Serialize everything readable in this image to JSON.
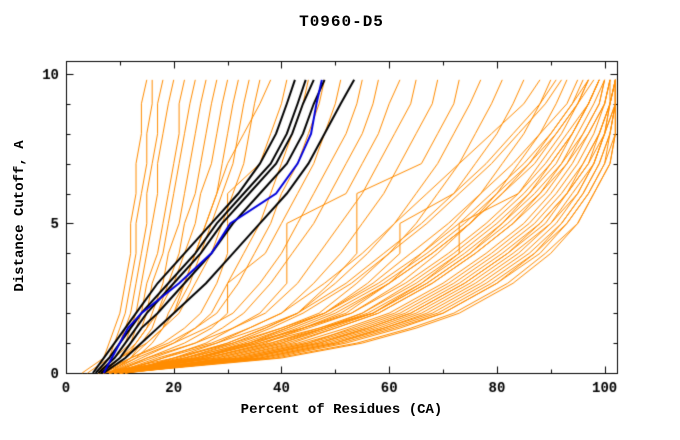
{
  "chart_data": {
    "type": "line",
    "title": "T0960-D5",
    "xlabel": "Percent of Residues (CA)",
    "ylabel": "Distance Cutoff, A",
    "xlim": [
      0,
      102.3
    ],
    "ylim": [
      0,
      10.43
    ],
    "xticks_major": [
      0,
      20,
      40,
      60,
      80,
      100
    ],
    "xtick_labels": [
      "0",
      "20",
      "40",
      "60",
      "80",
      "100"
    ],
    "xticks_minor": [
      10,
      30,
      50,
      70,
      90
    ],
    "yticks_major": [
      0,
      5,
      10
    ],
    "ytick_labels": [
      "0",
      "5",
      "10"
    ],
    "yticks_minor": [
      1,
      2,
      3,
      4,
      6,
      7,
      8,
      9
    ],
    "grid": false,
    "legend": "none",
    "colors": {
      "background": "#ffffff",
      "axis": "#000000",
      "orange_curves": "#ff8c00",
      "black_curves": "#000000",
      "blue_curve": "#0000dd"
    },
    "y_levels": [
      0,
      0.5,
      1,
      1.5,
      2,
      3,
      4,
      5,
      6,
      7,
      8,
      9,
      9.8
    ],
    "series": [
      {
        "name": "orange-curves",
        "color": "#ff8c00",
        "width": 1,
        "curves_x": [
          [
            3,
            7,
            8,
            9,
            10,
            11,
            12,
            12,
            13,
            13,
            14,
            14,
            15
          ],
          [
            6,
            8,
            9,
            10,
            11,
            12,
            13,
            13,
            14,
            15,
            15,
            16,
            16
          ],
          [
            4,
            8,
            10,
            11,
            12,
            13,
            14,
            15,
            15,
            16,
            17,
            17,
            18
          ],
          [
            6,
            9,
            11,
            12,
            13,
            14,
            15,
            16,
            17,
            17,
            18,
            19,
            20
          ],
          [
            7,
            10,
            12,
            13,
            14,
            15,
            17,
            18,
            19,
            20,
            21,
            21,
            22
          ],
          [
            6,
            9,
            12,
            14,
            15,
            16,
            18,
            19,
            20,
            21,
            22,
            23,
            24
          ],
          [
            7,
            11,
            13,
            15,
            16,
            18,
            19,
            21,
            22,
            23,
            24,
            25,
            26
          ],
          [
            8,
            12,
            14,
            16,
            17,
            19,
            21,
            22,
            24,
            25,
            26,
            27,
            28
          ],
          [
            7,
            10,
            13,
            15,
            17,
            20,
            22,
            24,
            25,
            27,
            28,
            29,
            30
          ],
          [
            8,
            13,
            16,
            18,
            19,
            22,
            24,
            26,
            28,
            29,
            30,
            31,
            32
          ],
          [
            6,
            10,
            14,
            17,
            20,
            23,
            25,
            27,
            29,
            31,
            32,
            33,
            34
          ],
          [
            8,
            12,
            15,
            18,
            21,
            24,
            27,
            29,
            31,
            33,
            34,
            35,
            36
          ],
          [
            6,
            10,
            15,
            18,
            20,
            22,
            24,
            26,
            28,
            30,
            33,
            36,
            38
          ],
          [
            7,
            12,
            18,
            22,
            25,
            28,
            30,
            30,
            30,
            36,
            38,
            40,
            41
          ],
          [
            8,
            14,
            20,
            24,
            27,
            30,
            33,
            36,
            38,
            40,
            42,
            44,
            45
          ],
          [
            6,
            12,
            19,
            24,
            28,
            32,
            35,
            38,
            40,
            43,
            45,
            47,
            48
          ],
          [
            9,
            15,
            22,
            27,
            30,
            30,
            37,
            40,
            43,
            46,
            48,
            50,
            51
          ],
          [
            7,
            13,
            20,
            26,
            31,
            36,
            40,
            43,
            46,
            49,
            52,
            54,
            55
          ],
          [
            8,
            16,
            24,
            29,
            33,
            38,
            42,
            46,
            49,
            52,
            55,
            57,
            58
          ],
          [
            10,
            18,
            26,
            31,
            36,
            41,
            41,
            41,
            52,
            55,
            58,
            60,
            62
          ],
          [
            8,
            15,
            24,
            31,
            37,
            43,
            47,
            51,
            55,
            58,
            61,
            64,
            65
          ],
          [
            9,
            17,
            27,
            34,
            40,
            46,
            51,
            55,
            59,
            62,
            65,
            68,
            69
          ],
          [
            11,
            20,
            30,
            37,
            43,
            49,
            54,
            54,
            54,
            66,
            69,
            72,
            73
          ],
          [
            9,
            18,
            28,
            36,
            43,
            50,
            56,
            61,
            65,
            69,
            72,
            75,
            77
          ],
          [
            9,
            22,
            32,
            40,
            47,
            54,
            60,
            65,
            69,
            73,
            76,
            79,
            81
          ],
          [
            10,
            20,
            31,
            40,
            48,
            56,
            62,
            62,
            72,
            76,
            80,
            83,
            85
          ],
          [
            10,
            24,
            35,
            44,
            52,
            60,
            66,
            72,
            77,
            81,
            85,
            88,
            90
          ],
          [
            11,
            22,
            34,
            44,
            53,
            62,
            69,
            75,
            80,
            84,
            88,
            91,
            93
          ],
          [
            10,
            26,
            38,
            48,
            57,
            66,
            73,
            73,
            84,
            88,
            92,
            95,
            97
          ],
          [
            9,
            24,
            36,
            47,
            57,
            67,
            75,
            81,
            86,
            90,
            94,
            97,
            99
          ],
          [
            7,
            20,
            28,
            34,
            40,
            48,
            55,
            61,
            67,
            73,
            79,
            85,
            88
          ],
          [
            8,
            22,
            31,
            38,
            44,
            53,
            60,
            67,
            73,
            79,
            84,
            89,
            92
          ],
          [
            6,
            24,
            34,
            41,
            48,
            57,
            64,
            71,
            77,
            83,
            88,
            93,
            95
          ],
          [
            9,
            26,
            37,
            44,
            51,
            60,
            68,
            75,
            81,
            86,
            91,
            95,
            97
          ],
          [
            7,
            28,
            40,
            48,
            55,
            64,
            72,
            79,
            85,
            90,
            94,
            97,
            99
          ],
          [
            10,
            30,
            42,
            50,
            58,
            68,
            76,
            83,
            88,
            93,
            96,
            99,
            100
          ],
          [
            8,
            32,
            45,
            53,
            61,
            71,
            79,
            86,
            91,
            95,
            98,
            100,
            101
          ],
          [
            11,
            34,
            47,
            56,
            64,
            74,
            82,
            88,
            93,
            97,
            100,
            101,
            102
          ],
          [
            9,
            36,
            50,
            59,
            67,
            77,
            85,
            91,
            95,
            98,
            100,
            102,
            102
          ],
          [
            10,
            38,
            52,
            62,
            70,
            80,
            87,
            93,
            97,
            100,
            101,
            102,
            102
          ],
          [
            10,
            40,
            55,
            65,
            73,
            83,
            90,
            95,
            98,
            101,
            102,
            102,
            102
          ],
          [
            8,
            25,
            36,
            45,
            53,
            63,
            71,
            78,
            84,
            89,
            93,
            97,
            99
          ],
          [
            11,
            29,
            41,
            50,
            58,
            68,
            76,
            83,
            89,
            93,
            97,
            100,
            101
          ],
          [
            9,
            33,
            46,
            56,
            64,
            74,
            82,
            89,
            93,
            97,
            99,
            101,
            102
          ],
          [
            10,
            37,
            51,
            61,
            70,
            80,
            88,
            93,
            97,
            100,
            102,
            102,
            102
          ],
          [
            7,
            23,
            33,
            41,
            48,
            58,
            66,
            73,
            79,
            85,
            90,
            94,
            96
          ],
          [
            10,
            27,
            39,
            48,
            56,
            66,
            74,
            81,
            87,
            92,
            95,
            98,
            100
          ],
          [
            8,
            31,
            44,
            54,
            62,
            72,
            80,
            87,
            92,
            96,
            99,
            101,
            101
          ],
          [
            10,
            35,
            49,
            59,
            68,
            78,
            86,
            92,
            96,
            99,
            101,
            102,
            102
          ],
          [
            9,
            39,
            54,
            64,
            72,
            82,
            89,
            95,
            98,
            101,
            102,
            102,
            102
          ],
          [
            11,
            25,
            35,
            43,
            50,
            60,
            68,
            75,
            81,
            87,
            91,
            95,
            98
          ],
          [
            10,
            34,
            48,
            58,
            66,
            76,
            84,
            90,
            95,
            98,
            100,
            102,
            102
          ],
          [
            8,
            28,
            40,
            49,
            57,
            67,
            75,
            82,
            88,
            92,
            96,
            99,
            100
          ],
          [
            10,
            32,
            45,
            55,
            63,
            73,
            81,
            88,
            93,
            96,
            99,
            101,
            102
          ],
          [
            9,
            21,
            30,
            37,
            43,
            52,
            59,
            66,
            72,
            78,
            83,
            88,
            91
          ],
          [
            10,
            26,
            38,
            47,
            55,
            65,
            73,
            80,
            86,
            91,
            94,
            97,
            99
          ],
          [
            8,
            30,
            43,
            52,
            60,
            70,
            78,
            85,
            90,
            94,
            97,
            100,
            101
          ],
          [
            11,
            36,
            50,
            60,
            69,
            79,
            87,
            92,
            96,
            99,
            101,
            102,
            102
          ],
          [
            9,
            24,
            34,
            42,
            49,
            59,
            67,
            74,
            80,
            86,
            90,
            94,
            97
          ],
          [
            10,
            33,
            47,
            57,
            65,
            75,
            83,
            90,
            94,
            98,
            100,
            101,
            102
          ]
        ]
      },
      {
        "name": "black-curves",
        "color": "#000000",
        "width": 2,
        "curves_x": [
          [
            5,
            7,
            9,
            11,
            13,
            17,
            22,
            27,
            32,
            36,
            39,
            41,
            42.5
          ],
          [
            5.5,
            8,
            10,
            12,
            14,
            19,
            24,
            28,
            33,
            38,
            41,
            43,
            44.5
          ],
          [
            6,
            9,
            11,
            13,
            15,
            20,
            25,
            29,
            34,
            39,
            42,
            44,
            46
          ],
          [
            6.5,
            10,
            12,
            14,
            17,
            22,
            27,
            31,
            36,
            41,
            44,
            46,
            48
          ],
          [
            7,
            11,
            14,
            17,
            20,
            26,
            31,
            36,
            41,
            45,
            48,
            51,
            53.5
          ]
        ]
      },
      {
        "name": "blue-curve",
        "color": "#0000dd",
        "width": 2,
        "curves_x": [
          [
            7,
            8.5,
            10,
            11.5,
            14,
            21,
            27,
            30.5,
            39,
            43,
            45.5,
            46.5,
            47.5
          ]
        ]
      }
    ]
  }
}
